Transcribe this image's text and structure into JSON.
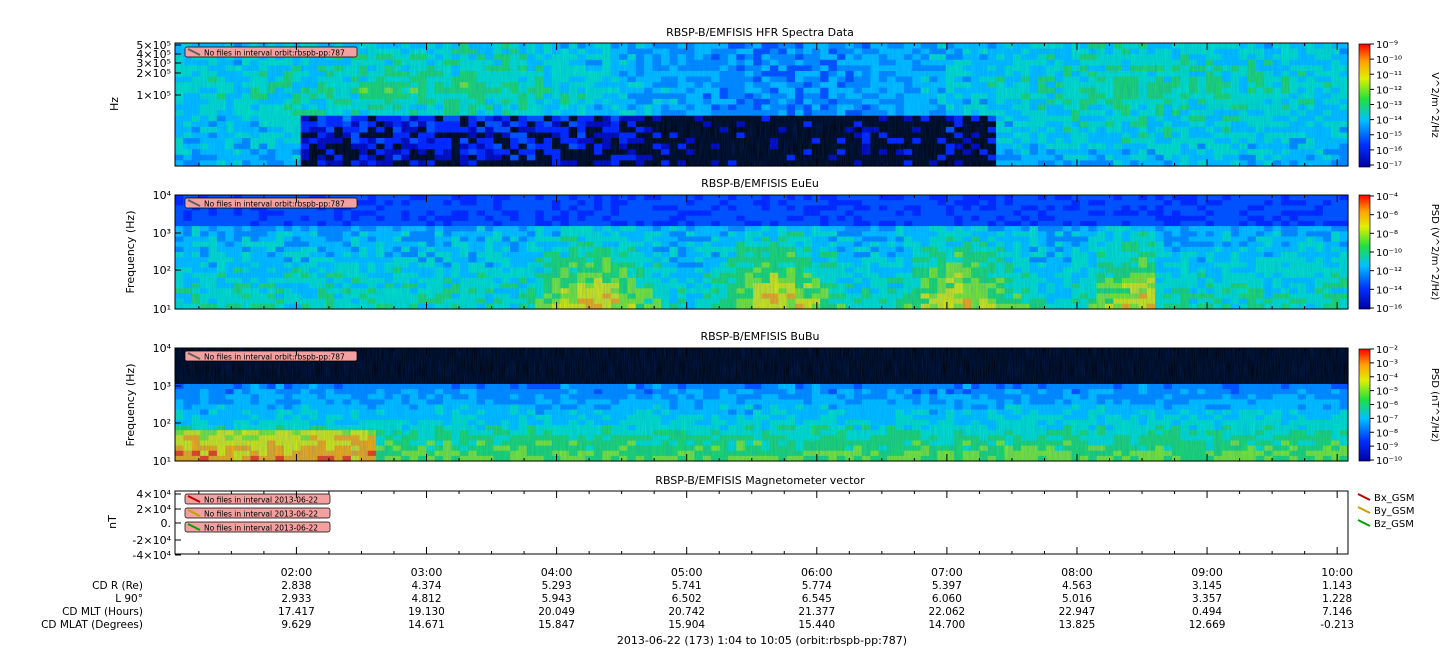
{
  "footer": "2013-06-22 (173) 1:04 to 10:05 (orbit:rbspb-pp:787)",
  "colors": {
    "frame": "#000000",
    "black_bg": "#000000",
    "notice_fill": "#f2a0a0"
  },
  "chart_data": [
    {
      "type": "heatmap",
      "title": "RBSP-B/EMFISIS  HFR Spectra Data",
      "ylabel": "Hz",
      "y_scale": "log",
      "y_ticks": [
        "5×10⁵",
        "4×10⁵",
        "3×10⁵",
        "2×10⁵",
        "1×10⁵"
      ],
      "x_range": [
        "01:04",
        "10:05"
      ],
      "colorbar": {
        "label": "V^2/m^2/Hz",
        "ticks": [
          "10⁻⁹",
          "10⁻¹⁰",
          "10⁻¹¹",
          "10⁻¹²",
          "10⁻¹³",
          "10⁻¹⁴",
          "10⁻¹⁵",
          "10⁻¹⁶",
          "10⁻¹⁷"
        ]
      },
      "notice": "No files in interval orbit:rbspb-pp:787"
    },
    {
      "type": "heatmap",
      "title": "RBSP-B/EMFISIS  EuEu",
      "ylabel": "Frequency (Hz)",
      "y_scale": "log",
      "y_ticks": [
        "10⁴",
        "10³",
        "10²",
        "10¹"
      ],
      "x_range": [
        "01:04",
        "10:05"
      ],
      "colorbar": {
        "label": "PSD (V^2/m^2/Hz)",
        "ticks": [
          "10⁻⁴",
          "10⁻⁶",
          "10⁻⁸",
          "10⁻¹⁰",
          "10⁻¹²",
          "10⁻¹⁴",
          "10⁻¹⁶"
        ]
      },
      "notice": "No files in interval orbit:rbspb-pp:787"
    },
    {
      "type": "heatmap",
      "title": "RBSP-B/EMFISIS  BuBu",
      "ylabel": "Frequency (Hz)",
      "y_scale": "log",
      "y_ticks": [
        "10⁴",
        "10³",
        "10²",
        "10¹"
      ],
      "x_range": [
        "01:04",
        "10:05"
      ],
      "colorbar": {
        "label": "PSD (nT^2/Hz)",
        "ticks": [
          "10⁻²",
          "10⁻³",
          "10⁻⁴",
          "10⁻⁵",
          "10⁻⁶",
          "10⁻⁷",
          "10⁻⁸",
          "10⁻⁹",
          "10⁻¹⁰"
        ]
      },
      "notice": "No files in interval orbit:rbspb-pp:787"
    },
    {
      "type": "line",
      "title": "RBSP-B/EMFISIS  Magnetometer vector",
      "ylabel": "nT",
      "y_ticks": [
        "4×10⁴",
        "2×10⁴",
        "0.",
        "-2×10⁴",
        "-4×10⁴"
      ],
      "series": [
        {
          "name": "Bx_GSM",
          "color": "#c00000",
          "notice": "No files in interval 2013-06-22"
        },
        {
          "name": "By_GSM",
          "color": "#c8a000",
          "notice": "No files in interval 2013-06-22"
        },
        {
          "name": "Bz_GSM",
          "color": "#00a000",
          "notice": "No files in interval 2013-06-22"
        }
      ]
    }
  ],
  "x_axis": {
    "ticks": [
      "02:00",
      "03:00",
      "04:00",
      "05:00",
      "06:00",
      "07:00",
      "08:00",
      "09:00",
      "10:00"
    ]
  },
  "ephemeris": {
    "rows": [
      {
        "label": "CD R (Re)",
        "values": [
          "2.838",
          "4.374",
          "5.293",
          "5.741",
          "5.774",
          "5.397",
          "4.563",
          "3.145",
          "1.143"
        ]
      },
      {
        "label": "L 90°",
        "values": [
          "2.933",
          "4.812",
          "5.943",
          "6.502",
          "6.545",
          "6.060",
          "5.016",
          "3.357",
          "1.228"
        ]
      },
      {
        "label": "CD MLT (Hours)",
        "values": [
          "17.417",
          "19.130",
          "20.049",
          "20.742",
          "21.377",
          "22.062",
          "22.947",
          "0.494",
          "7.146"
        ]
      },
      {
        "label": "CD MLAT (Degrees)",
        "values": [
          "9.629",
          "14.671",
          "15.847",
          "15.904",
          "15.440",
          "14.700",
          "13.825",
          "12.669",
          "-0.213"
        ]
      }
    ]
  }
}
